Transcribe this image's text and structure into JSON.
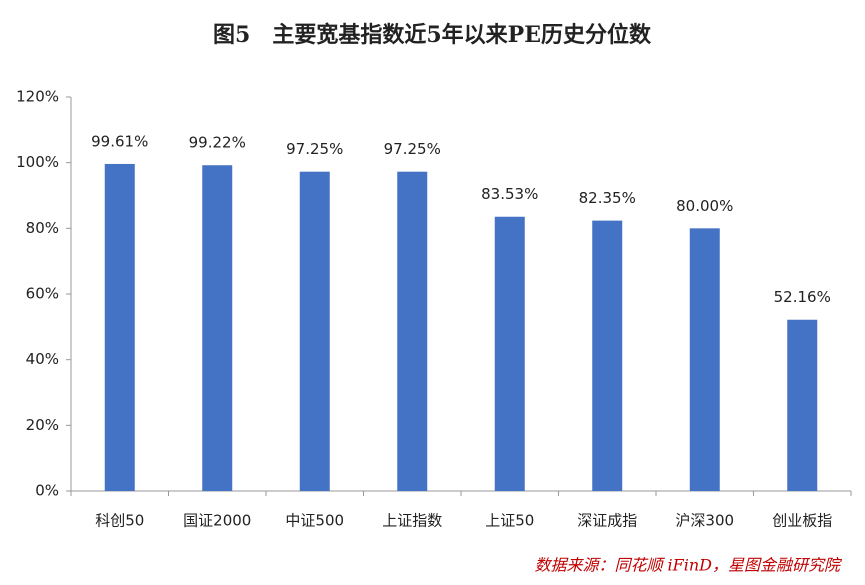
{
  "chart_data": {
    "type": "bar",
    "title": "图5　主要宽基指数近5年以来PE历史分位数",
    "categories": [
      "科创50",
      "国证2000",
      "中证500",
      "上证指数",
      "上证50",
      "深证成指",
      "沪深300",
      "创业板指"
    ],
    "values": [
      99.61,
      99.22,
      97.25,
      97.25,
      83.53,
      82.35,
      80.0,
      52.16
    ],
    "value_labels": [
      "99.61%",
      "99.22%",
      "97.25%",
      "97.25%",
      "83.53%",
      "82.35%",
      "80.00%",
      "52.16%"
    ],
    "color": "#4472c4",
    "ylim": [
      0,
      120
    ],
    "yticks": [
      {
        "value": 0,
        "label": "0%"
      },
      {
        "value": 20,
        "label": "20%"
      },
      {
        "value": 40,
        "label": "40%"
      },
      {
        "value": 60,
        "label": "60%"
      },
      {
        "value": 80,
        "label": "80%"
      },
      {
        "value": 100,
        "label": "100%"
      },
      {
        "value": 120,
        "label": "120%"
      }
    ],
    "grid": false,
    "source": "数据来源：同花顺 iFinD，星图金融研究院"
  }
}
